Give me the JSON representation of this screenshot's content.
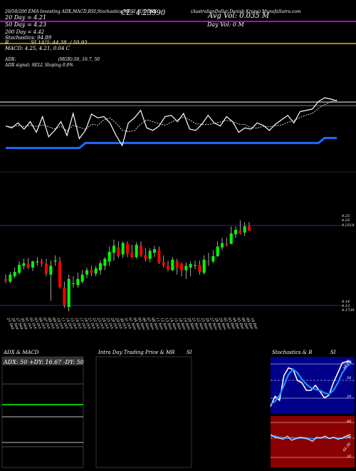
{
  "header": {
    "line1": "20/50/200 EMA Investing ADX,MACD,RSI,Stochastics,MRSI AUDDKK",
    "desc": "(AustralianDollar Danish Krone) MunafaSutra.com",
    "close": "CL: 4.23990",
    "avg_vol": "Avg Vol: 0.035 M",
    "day_vol": "Day Vol: 0  M",
    "ema20": "20  Day = 4.21",
    "ema50": "50  Day = 4.23",
    "ema200": "200  Day = 4.42",
    "stoch": "Stochastics: 94.89",
    "rsi": "R              SI 14/3: 44.38  / 50.93",
    "macd": "MACD: 4.25, 4.21, 0.04  C",
    "adx1": "ADX:                               (MGR):50, 16.7, 50",
    "adx2": "ADX  signal: SELL  Sloping 0.0%"
  },
  "price_labels": {
    "top_a": "4.25",
    "top_b": "4.25",
    "top_c": "4.2518",
    "bot_a": "4.14",
    "bot_b": "4.13",
    "bot_c": "4.1739"
  },
  "dates": [
    "25 Sep",
    "26 Sep",
    "27 Sep",
    "30 Sep",
    "01 Oct",
    "02 Oct",
    "03 Oct",
    "04 Oct",
    "07 Oct",
    "08 Oct",
    "09 Oct",
    "10 Oct",
    "11 Oct",
    "14 Oct",
    "15 Oct",
    "16 Oct",
    "17 Oct",
    "18 Oct",
    "21 Oct",
    "22 Oct",
    "23 Oct",
    "24 Oct",
    "25 Oct",
    "28 Oct",
    "29 Oct",
    "30 Oct",
    "31 Oct",
    "01 Nov",
    "04 Nov",
    "05 Nov",
    "06 Nov",
    "07 Nov",
    "08 Nov",
    "11 Nov",
    "12 Nov",
    "13 Nov",
    "14 Nov",
    "15 Nov",
    "18 Nov",
    "19 Nov",
    "20 Nov",
    "21 Nov",
    "22 Nov",
    "25 Nov",
    "26 Nov",
    "27 Nov",
    "28 Nov",
    "29 Nov",
    "02 Dec",
    "03 Dec",
    "04 Dec",
    "05 Dec",
    "06 Dec",
    "09 Dec",
    "10 Dec"
  ],
  "panels": {
    "adx_title": "ADX  & MACD",
    "adx_values": "ADX: 50  +DY: 16.67  -DY: 50",
    "intra_title": "Intra  Day Trading Price  & MR",
    "intra_suffix": "SI",
    "stoch_title": "Stochastics & R",
    "stoch_suffix": "SI",
    "stoch_levels": [
      "80",
      "50",
      "20"
    ],
    "stoch_value": "94.89",
    "rsi_levels": [
      "80",
      "50",
      "20"
    ],
    "rsi_value": "44.38"
  },
  "colors": {
    "bull": "#00ff00",
    "bear": "#ff0000",
    "ema20_line": "#ff00ff",
    "ema50_line": "#ffa500",
    "band": "#1e6bff",
    "rsi_bg": "#8b0000"
  },
  "chart_data": {
    "type": "candlestick",
    "x": [
      "25 Sep",
      "26 Sep",
      "27 Sep",
      "30 Sep",
      "01 Oct",
      "02 Oct",
      "03 Oct",
      "04 Oct",
      "07 Oct",
      "08 Oct",
      "09 Oct",
      "10 Oct",
      "11 Oct",
      "14 Oct",
      "15 Oct",
      "16 Oct",
      "17 Oct",
      "18 Oct",
      "21 Oct",
      "22 Oct",
      "23 Oct",
      "24 Oct",
      "25 Oct",
      "28 Oct",
      "29 Oct",
      "30 Oct",
      "31 Oct",
      "01 Nov",
      "04 Nov",
      "05 Nov",
      "06 Nov",
      "07 Nov",
      "08 Nov",
      "11 Nov",
      "12 Nov",
      "13 Nov",
      "14 Nov",
      "15 Nov",
      "18 Nov",
      "19 Nov",
      "20 Nov",
      "21 Nov",
      "22 Nov",
      "25 Nov",
      "26 Nov",
      "27 Nov",
      "28 Nov",
      "29 Nov",
      "02 Dec",
      "03 Dec",
      "04 Dec",
      "05 Dec",
      "06 Dec",
      "09 Dec",
      "10 Dec"
    ],
    "open": [
      4.185,
      4.182,
      4.188,
      4.192,
      4.2,
      4.202,
      4.198,
      4.204,
      4.205,
      4.202,
      4.19,
      4.205,
      4.205,
      4.175,
      4.153,
      4.18,
      4.178,
      4.182,
      4.19,
      4.195,
      4.191,
      4.195,
      4.2,
      4.205,
      4.215,
      4.221,
      4.213,
      4.225,
      4.215,
      4.21,
      4.223,
      4.212,
      4.208,
      4.215,
      4.218,
      4.204,
      4.2,
      4.195,
      4.205,
      4.202,
      4.195,
      4.198,
      4.2,
      4.201,
      4.192,
      4.205,
      4.205,
      4.211,
      4.221,
      4.225,
      4.225,
      4.236,
      4.24,
      4.238,
      4.245
    ],
    "high": [
      4.19,
      4.193,
      4.198,
      4.205,
      4.208,
      4.209,
      4.206,
      4.21,
      4.208,
      4.208,
      4.206,
      4.212,
      4.21,
      4.182,
      4.19,
      4.188,
      4.192,
      4.195,
      4.198,
      4.2,
      4.2,
      4.206,
      4.21,
      4.222,
      4.23,
      4.228,
      4.228,
      4.228,
      4.224,
      4.227,
      4.228,
      4.22,
      4.22,
      4.223,
      4.222,
      4.212,
      4.206,
      4.21,
      4.208,
      4.204,
      4.204,
      4.205,
      4.206,
      4.206,
      4.212,
      4.215,
      4.218,
      4.228,
      4.232,
      4.232,
      4.245,
      4.245,
      4.252,
      4.25,
      4.25
    ],
    "low": [
      4.18,
      4.18,
      4.186,
      4.19,
      4.196,
      4.196,
      4.194,
      4.2,
      4.199,
      4.188,
      4.16,
      4.2,
      4.174,
      4.152,
      4.148,
      4.175,
      4.175,
      4.18,
      4.186,
      4.188,
      4.188,
      4.19,
      4.195,
      4.2,
      4.206,
      4.209,
      4.209,
      4.21,
      4.209,
      4.208,
      4.21,
      4.205,
      4.204,
      4.21,
      4.202,
      4.198,
      4.194,
      4.194,
      4.19,
      4.188,
      4.185,
      4.188,
      4.196,
      4.19,
      4.19,
      4.2,
      4.203,
      4.21,
      4.218,
      4.222,
      4.225,
      4.232,
      4.236,
      4.234,
      4.24
    ],
    "close": [
      4.183,
      4.19,
      4.193,
      4.201,
      4.203,
      4.198,
      4.205,
      4.205,
      4.203,
      4.191,
      4.2,
      4.206,
      4.176,
      4.155,
      4.185,
      4.18,
      4.185,
      4.19,
      4.195,
      4.192,
      4.197,
      4.203,
      4.208,
      4.216,
      4.223,
      4.211,
      4.226,
      4.214,
      4.21,
      4.224,
      4.212,
      4.208,
      4.217,
      4.219,
      4.204,
      4.201,
      4.196,
      4.207,
      4.198,
      4.195,
      4.2,
      4.202,
      4.201,
      4.193,
      4.207,
      4.204,
      4.211,
      4.222,
      4.226,
      4.224,
      4.237,
      4.241,
      4.237,
      4.245,
      4.24
    ],
    "ylabel_levels": [
      4.25,
      4.14
    ]
  }
}
